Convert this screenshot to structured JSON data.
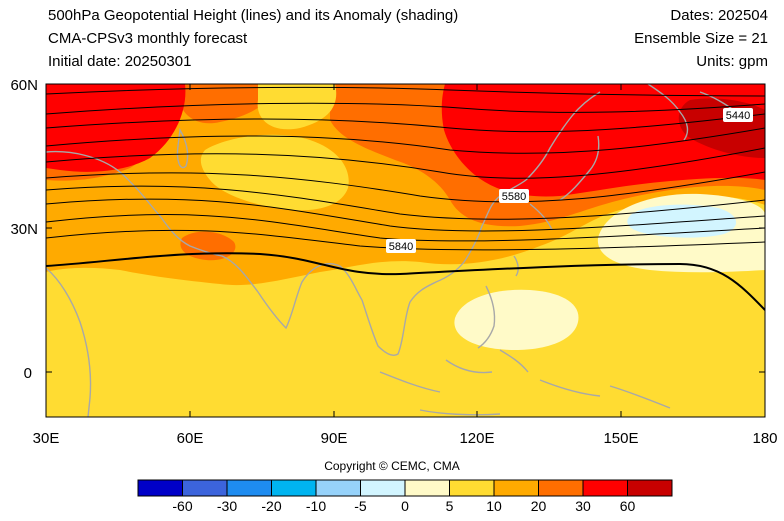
{
  "header": {
    "title": "500hPa Geopotential Height (lines) and its Anomaly (shading)",
    "model": "CMA-CPSv3 monthly forecast",
    "initial_date": "Initial date: 20250301",
    "dates": "Dates: 202504",
    "ensemble": "Ensemble Size = 21",
    "units": "Units: gpm"
  },
  "map": {
    "lat_labels": [
      "60N",
      "30N",
      "0"
    ],
    "lon_labels": [
      "30E",
      "60E",
      "90E",
      "120E",
      "150E",
      "180"
    ],
    "contour_labels": [
      "5440",
      "5580",
      "5840"
    ],
    "coastline_color": "#a8a8a8"
  },
  "copyright": "Copyright © CEMC, CMA",
  "colorbar": {
    "colors": [
      "#0000c8",
      "#3c64dc",
      "#1e8cf0",
      "#00b4f0",
      "#96d2fa",
      "#d2f5ff",
      "#fffac8",
      "#ffdc32",
      "#ffaa00",
      "#ff6e00",
      "#ff0000",
      "#c80000"
    ],
    "labels": [
      "-60",
      "-30",
      "-20",
      "-10",
      "-5",
      "0",
      "5",
      "10",
      "20",
      "30",
      "60"
    ]
  }
}
